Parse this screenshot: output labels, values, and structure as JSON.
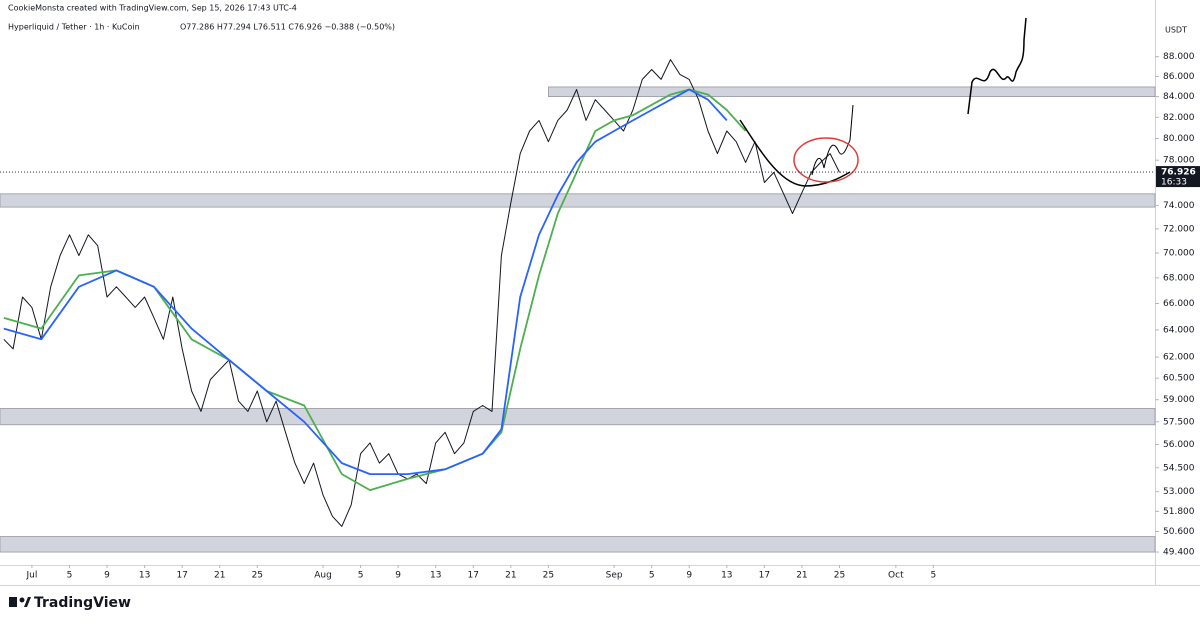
{
  "chart_data": {
    "type": "line",
    "credit": "CookieMonsta created with TradingView.com, Sep 15, 2026 17:43 UTC-4",
    "symbol": "Hyperliquid / Tether · 1h · KuCoin",
    "ohlc": "O77.286 H77.294 L76.511 C76.926 −0.388 (−0.50%)",
    "y_unit": "USDT",
    "brand": "TradingView",
    "log_scale": true,
    "ylim": [
      48.66,
      92.06
    ],
    "xlim": [
      -3.4,
      119.6
    ],
    "yticks": [
      {
        "value": 88,
        "label": "88.000"
      },
      {
        "value": 86,
        "label": "86.000"
      },
      {
        "value": 84,
        "label": "84.000"
      },
      {
        "value": 82,
        "label": "82.000"
      },
      {
        "value": 80,
        "label": "80.000"
      },
      {
        "value": 78,
        "label": "78.000"
      },
      {
        "value": 74,
        "label": "74.000"
      },
      {
        "value": 72,
        "label": "72.000"
      },
      {
        "value": 70,
        "label": "70.000"
      },
      {
        "value": 68,
        "label": "68.000"
      },
      {
        "value": 66,
        "label": "66.000"
      },
      {
        "value": 64,
        "label": "64.000"
      },
      {
        "value": 62,
        "label": "62.000"
      },
      {
        "value": 60.5,
        "label": "60.500"
      },
      {
        "value": 59,
        "label": "59.000"
      },
      {
        "value": 57.5,
        "label": "57.500"
      },
      {
        "value": 56,
        "label": "56.000"
      },
      {
        "value": 54.5,
        "label": "54.500"
      },
      {
        "value": 53,
        "label": "53.000"
      },
      {
        "value": 51.8,
        "label": "51.800"
      },
      {
        "value": 50.6,
        "label": "50.600"
      },
      {
        "value": 49.4,
        "label": "49.400"
      }
    ],
    "xticks": [
      {
        "value": 0,
        "label": "Jul"
      },
      {
        "value": 4,
        "label": "5"
      },
      {
        "value": 8,
        "label": "9"
      },
      {
        "value": 12,
        "label": "13"
      },
      {
        "value": 16,
        "label": "17"
      },
      {
        "value": 20,
        "label": "21"
      },
      {
        "value": 24,
        "label": "25"
      },
      {
        "value": 31,
        "label": "Aug"
      },
      {
        "value": 35,
        "label": "5"
      },
      {
        "value": 39,
        "label": "9"
      },
      {
        "value": 43,
        "label": "13"
      },
      {
        "value": 47,
        "label": "17"
      },
      {
        "value": 51,
        "label": "21"
      },
      {
        "value": 55,
        "label": "25"
      },
      {
        "value": 62,
        "label": "Sep"
      },
      {
        "value": 66,
        "label": "5"
      },
      {
        "value": 70,
        "label": "9"
      },
      {
        "value": 74,
        "label": "13"
      },
      {
        "value": 78,
        "label": "17"
      },
      {
        "value": 82,
        "label": "21"
      },
      {
        "value": 86,
        "label": "25"
      },
      {
        "value": 92,
        "label": "Oct"
      },
      {
        "value": 96,
        "label": "5"
      }
    ],
    "last_price": {
      "value": 76.926,
      "countdown": "16:33"
    },
    "zones": [
      {
        "range": [
          84.0,
          84.95
        ],
        "from": 55
      },
      {
        "range": [
          73.85,
          75.0
        ]
      },
      {
        "range": [
          57.3,
          58.4
        ]
      },
      {
        "range": [
          49.4,
          50.3
        ]
      }
    ],
    "series": [
      {
        "color": "#131722",
        "x": [
          -3,
          -2,
          -1,
          0,
          1,
          2,
          3,
          4,
          5,
          6,
          7,
          8,
          9,
          10,
          11,
          12,
          13,
          14,
          15,
          16,
          17,
          18,
          19,
          20,
          21,
          22,
          23,
          24,
          25,
          26,
          27,
          28,
          29,
          30,
          31,
          32,
          33,
          34,
          35,
          36,
          37,
          38,
          39,
          40,
          41,
          42,
          43,
          44,
          45,
          46,
          47,
          48,
          49,
          50,
          51,
          52,
          53,
          54,
          55,
          56,
          57,
          58,
          59,
          60,
          61,
          62,
          63,
          64,
          65,
          66,
          67,
          68,
          69,
          70,
          71,
          72,
          73,
          74,
          75,
          76,
          77,
          78,
          79,
          80,
          81,
          82,
          83,
          84,
          85,
          86
        ],
        "values": [
          63.3,
          62.6,
          66.5,
          65.7,
          63.3,
          67.3,
          69.8,
          71.5,
          69.8,
          71.5,
          70.6,
          66.5,
          67.3,
          66.5,
          65.7,
          66.5,
          64.9,
          63.3,
          66.5,
          62.6,
          59.6,
          58.2,
          60.4,
          61.1,
          61.8,
          58.9,
          58.2,
          59.6,
          57.5,
          58.9,
          56.8,
          54.8,
          53.5,
          54.8,
          52.8,
          51.5,
          50.9,
          52.2,
          55.4,
          56.1,
          54.8,
          55.4,
          54.1,
          53.8,
          54.1,
          53.5,
          56.1,
          56.8,
          55.4,
          56.1,
          58.2,
          58.6,
          58.2,
          69.8,
          74.2,
          78.6,
          80.7,
          81.7,
          79.7,
          81.7,
          82.7,
          84.7,
          81.7,
          83.7,
          82.7,
          81.7,
          80.7,
          82.7,
          85.7,
          86.7,
          85.7,
          87.7,
          86.2,
          85.7,
          83.7,
          80.7,
          78.6,
          80.7,
          79.7,
          77.8,
          79.7,
          76.0,
          76.9,
          75.1,
          73.3,
          75.1,
          76.9,
          77.8,
          78.6,
          76.9
        ]
      },
      {
        "color": "#4caf50",
        "x": [
          -3,
          1,
          5,
          9,
          13,
          17,
          21,
          25,
          29,
          33,
          36,
          40,
          44,
          48,
          50,
          52,
          54,
          56,
          58,
          60,
          62,
          64,
          66,
          68,
          70,
          72,
          74,
          76
        ],
        "values": [
          64.9,
          64.1,
          68.2,
          68.6,
          67.3,
          63.3,
          61.8,
          59.6,
          58.6,
          54.1,
          53.1,
          53.8,
          54.4,
          55.4,
          56.8,
          62.6,
          68.2,
          73.3,
          76.9,
          80.7,
          81.7,
          82.2,
          83.2,
          84.2,
          84.7,
          84.2,
          82.7,
          80.7
        ]
      },
      {
        "color": "#2962ff",
        "x": [
          -3,
          1,
          5,
          9,
          13,
          17,
          21,
          25,
          29,
          33,
          36,
          40,
          44,
          48,
          50,
          52,
          54,
          56,
          58,
          60,
          62,
          64,
          66,
          68,
          70,
          72,
          74
        ],
        "values": [
          64.1,
          63.3,
          67.3,
          68.6,
          67.3,
          64.1,
          61.8,
          59.6,
          57.5,
          54.8,
          54.1,
          54.1,
          54.4,
          55.4,
          57.0,
          66.5,
          71.5,
          74.9,
          77.8,
          79.7,
          80.7,
          81.7,
          82.7,
          83.7,
          84.7,
          83.7,
          81.7
        ]
      }
    ]
  }
}
